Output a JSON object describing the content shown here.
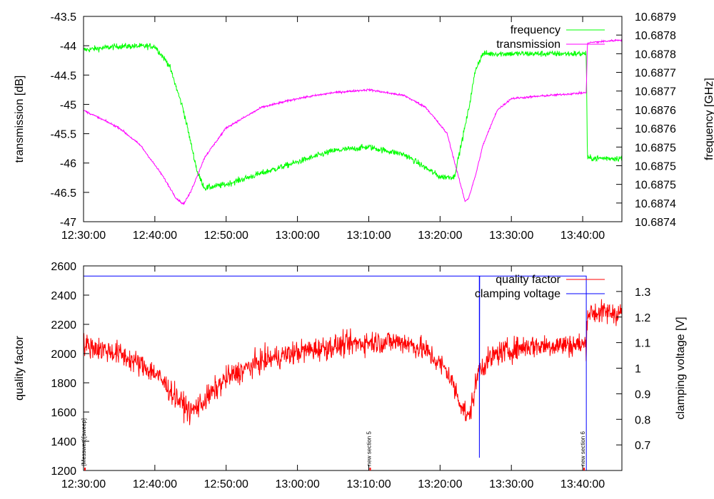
{
  "chart_data": [
    {
      "type": "line",
      "ylabel": "transmission [dB]",
      "y2label": "frequency [GHz]",
      "x_ticks": [
        "12:30:00",
        "12:40:00",
        "12:50:00",
        "13:00:00",
        "13:10:00",
        "13:20:00",
        "13:30:00",
        "13:40:00"
      ],
      "x_range": [
        "12:30:00",
        "13:45:30"
      ],
      "ylim": [
        -47,
        -43.5
      ],
      "y_ticks": [
        "-47",
        "-46.5",
        "-46",
        "-45.5",
        "-45",
        "-44.5",
        "-44",
        "-43.5"
      ],
      "y2lim": [
        10.68735,
        10.6879
      ],
      "y2_ticks": [
        "10.6874",
        "10.6874",
        "10.6875",
        "10.6875",
        "10.6875",
        "10.6876",
        "10.6876",
        "10.6877",
        "10.6877",
        "10.6878",
        "10.6878",
        "10.6879"
      ],
      "legend_position": "top-right",
      "series": [
        {
          "name": "frequency",
          "axis": "right",
          "color": "#00ff00",
          "noise": 1.4e-05,
          "x": [
            "12:30:00",
            "12:35:00",
            "12:40:00",
            "12:42:00",
            "12:44:00",
            "12:46:00",
            "12:47:00",
            "12:50:00",
            "12:55:00",
            "13:00:00",
            "13:05:00",
            "13:10:00",
            "13:15:00",
            "13:20:00",
            "13:22:00",
            "13:24:00",
            "13:25:00",
            "13:26:00",
            "13:30:00",
            "13:35:00",
            "13:40:30",
            "13:40:40",
            "13:45:30"
          ],
          "y": [
            10.68781,
            10.68782,
            10.68782,
            10.68777,
            10.68765,
            10.68748,
            10.68744,
            10.68745,
            10.68748,
            10.68751,
            10.68754,
            10.68755,
            10.68753,
            10.68747,
            10.68747,
            10.68765,
            10.68776,
            10.6878,
            10.6878,
            10.6878,
            10.6878,
            10.68752,
            10.68752
          ]
        },
        {
          "name": "transmission",
          "axis": "left",
          "color": "#ff00ff",
          "noise": 0.03,
          "x": [
            "12:30:00",
            "12:35:00",
            "12:38:00",
            "12:41:00",
            "12:43:00",
            "12:44:00",
            "12:45:00",
            "12:47:00",
            "12:50:00",
            "12:55:00",
            "13:00:00",
            "13:05:00",
            "13:10:00",
            "13:15:00",
            "13:18:00",
            "13:21:00",
            "13:22:30",
            "13:23:30",
            "13:24:00",
            "13:25:00",
            "13:26:00",
            "13:28:00",
            "13:30:00",
            "13:35:00",
            "13:40:30",
            "13:40:40",
            "13:45:30"
          ],
          "y": [
            -45.1,
            -45.4,
            -45.7,
            -46.2,
            -46.6,
            -46.7,
            -46.5,
            -45.9,
            -45.4,
            -45.05,
            -44.9,
            -44.8,
            -44.75,
            -44.85,
            -45.05,
            -45.5,
            -46.2,
            -46.65,
            -46.6,
            -46.2,
            -45.7,
            -45.1,
            -44.9,
            -44.85,
            -44.8,
            -43.95,
            -43.9
          ]
        }
      ]
    },
    {
      "type": "line",
      "ylabel": "quality factor",
      "y2label": "clamping voltage [V]",
      "x_ticks": [
        "12:30:00",
        "12:40:00",
        "12:50:00",
        "13:00:00",
        "13:10:00",
        "13:20:00",
        "13:30:00",
        "13:40:00"
      ],
      "x_range": [
        "12:30:00",
        "13:45:30"
      ],
      "ylim": [
        1200,
        2600
      ],
      "y_ticks": [
        "1200",
        "1400",
        "1600",
        "1800",
        "2000",
        "2200",
        "2400",
        "2600"
      ],
      "y2lim": [
        0.6,
        1.4
      ],
      "y2_ticks": [
        "0.7",
        "0.8",
        "0.9",
        "1",
        "1.1",
        "1.2",
        "1.3"
      ],
      "legend_position": "top-right",
      "series": [
        {
          "name": "quality factor",
          "axis": "left",
          "color": "#ff0000",
          "noise": 140,
          "x": [
            "12:30:00",
            "12:35:00",
            "12:40:00",
            "12:43:00",
            "12:45:00",
            "12:47:00",
            "12:50:00",
            "12:55:00",
            "13:00:00",
            "13:05:00",
            "13:10:00",
            "13:15:00",
            "13:18:00",
            "13:21:00",
            "13:23:00",
            "13:24:00",
            "13:25:30",
            "13:28:00",
            "13:32:00",
            "13:37:00",
            "13:40:30",
            "13:40:40",
            "13:45:30"
          ],
          "y": [
            2060,
            2000,
            1870,
            1700,
            1600,
            1680,
            1830,
            1950,
            2010,
            2050,
            2080,
            2080,
            2020,
            1880,
            1650,
            1550,
            1900,
            2000,
            2050,
            2060,
            2060,
            2280,
            2280
          ]
        },
        {
          "name": "clamping voltage",
          "axis": "right",
          "color": "#0000ff",
          "noise": 0,
          "x": [
            "12:30:00",
            "13:25:30",
            "13:25:31",
            "13:25:33",
            "13:40:30",
            "13:40:31",
            "13:40:33"
          ],
          "y": [
            1.36,
            1.36,
            0.65,
            1.36,
            1.36,
            0.6,
            0.6
          ]
        }
      ],
      "annotations": [
        {
          "x": "12:30:00",
          "text": "(Messwert)[sweep]"
        },
        {
          "x": "13:10:00",
          "text": "new section 5"
        },
        {
          "x": "13:40:00",
          "text": "new section 6"
        }
      ]
    }
  ]
}
